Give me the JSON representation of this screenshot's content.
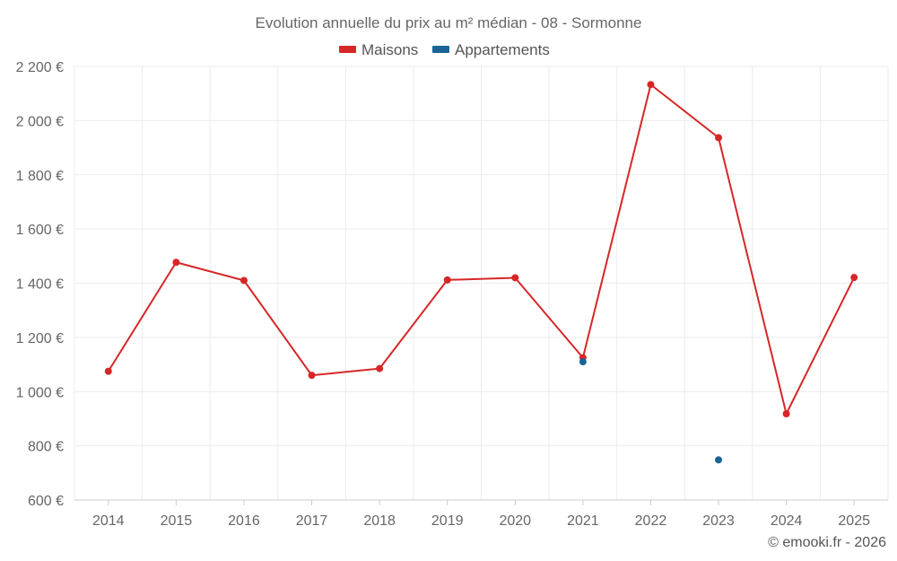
{
  "chart_data": {
    "type": "line",
    "title": "Evolution annuelle du prix au m² médian - 08 - Sormonne",
    "categories": [
      "2014",
      "2015",
      "2016",
      "2017",
      "2018",
      "2019",
      "2020",
      "2021",
      "2022",
      "2023",
      "2024",
      "2025"
    ],
    "series": [
      {
        "name": "Maisons",
        "color": "#d62728",
        "values": [
          1075,
          1477,
          1410,
          1060,
          1085,
          1412,
          1420,
          1125,
          2133,
          1937,
          918,
          1421
        ]
      },
      {
        "name": "Appartements",
        "color": "#1a6496",
        "values": [
          null,
          null,
          null,
          null,
          null,
          null,
          null,
          1110,
          null,
          748,
          null,
          null
        ]
      }
    ],
    "ylim": [
      600,
      2200
    ],
    "yticks": [
      600,
      800,
      1000,
      1200,
      1400,
      1600,
      1800,
      2000,
      2200
    ],
    "ytick_labels": [
      "600 €",
      "800 €",
      "1 000 €",
      "1 200 €",
      "1 400 €",
      "1 600 €",
      "1 800 €",
      "2 000 €",
      "2 200 €"
    ],
    "xlabel": "",
    "ylabel": "",
    "grid": true,
    "legend_position": "top-center"
  },
  "credit": "© emooki.fr - 2026"
}
